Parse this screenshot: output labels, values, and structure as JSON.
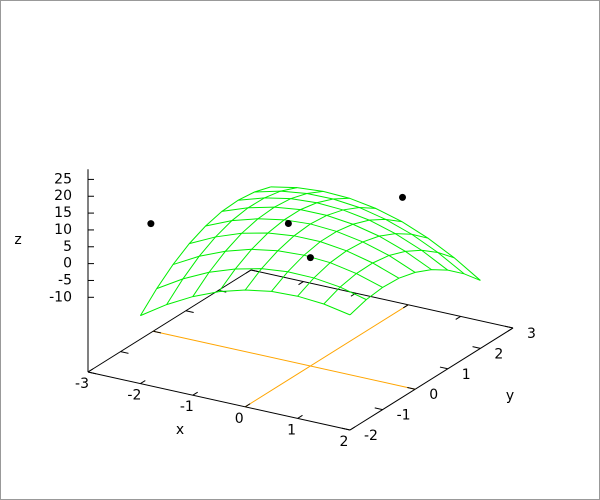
{
  "chart_data": {
    "type": "surface3d",
    "xlabel": "x",
    "ylabel": "y",
    "zlabel": "z",
    "x": [
      -2,
      -1.5,
      -1,
      -0.5,
      0,
      0.5,
      1,
      1.5,
      2
    ],
    "y": [
      -2,
      -1.5,
      -1,
      -0.5,
      0,
      0.5,
      1,
      1.5,
      2
    ],
    "z": [
      [
        -12,
        -7.0,
        -2.9,
        0.3,
        2.5,
        3.8,
        4.1,
        3.5,
        2
      ],
      [
        -7.0,
        -2.4,
        1.3,
        4.0,
        5.8,
        6.6,
        6.5,
        5.5,
        3.5
      ],
      [
        -2.9,
        1.3,
        4.5,
        6.8,
        8.1,
        8.5,
        8,
        6.5,
        4.1
      ],
      [
        0.3,
        4.0,
        6.8,
        8.6,
        9.5,
        9.5,
        8.5,
        6.6,
        3.8
      ],
      [
        2.5,
        5.8,
        8.1,
        9.5,
        10,
        9.5,
        8.1,
        5.8,
        2.5
      ],
      [
        3.8,
        6.6,
        8.5,
        9.5,
        9.5,
        8.6,
        6.8,
        4.0,
        0.3
      ],
      [
        4.1,
        6.5,
        8,
        8.5,
        8.1,
        6.8,
        4.5,
        1.3,
        -2.9
      ],
      [
        3.5,
        5.5,
        6.5,
        6.6,
        5.8,
        4.0,
        1.3,
        -2.4,
        -7
      ],
      [
        2,
        3.5,
        4.1,
        3.8,
        2.5,
        0.3,
        -2.9,
        -7,
        -12
      ]
    ],
    "surface_color": "#00ee00",
    "points": {
      "x": [
        -1.8,
        -0.7,
        0,
        0.7
      ],
      "y": [
        -2,
        0.45,
        0,
        1.7
      ],
      "z": [
        16,
        5,
        0,
        10
      ],
      "color": "#000000"
    },
    "xlim": [
      -3,
      2
    ],
    "ylim": [
      -2,
      3
    ],
    "zlim": [
      -10,
      28
    ],
    "xticks": [
      -3,
      -2,
      -1,
      0,
      1,
      2
    ],
    "yticks": [
      -2,
      -1,
      0,
      1,
      2,
      3
    ],
    "zticks": [
      25,
      20,
      15,
      10,
      5,
      0,
      -5,
      -10
    ],
    "zeroaxis": true,
    "zeroaxis_color": "#ffa500"
  }
}
